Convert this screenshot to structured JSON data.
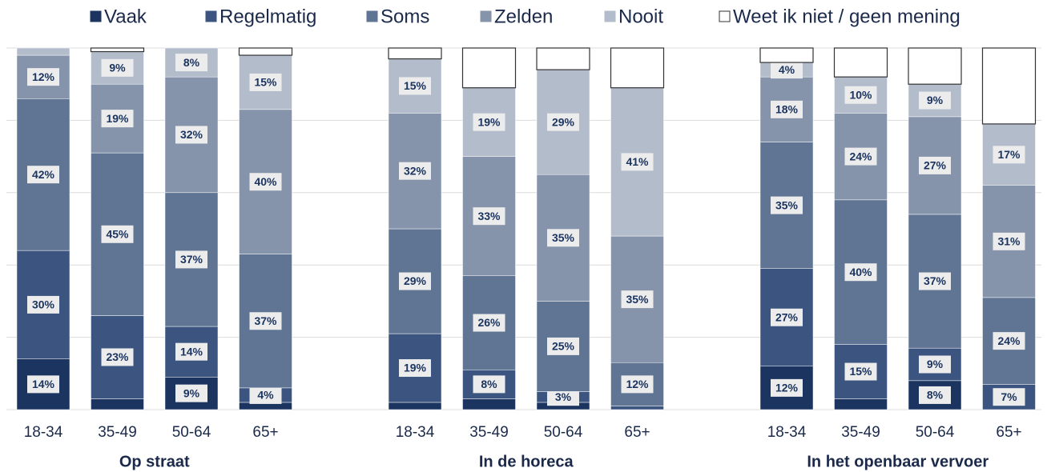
{
  "chart_data": {
    "type": "stacked_bar",
    "categories": [
      "18-34",
      "35-49",
      "50-64",
      "65+",
      "18-34",
      "35-49",
      "50-64",
      "65+",
      "18-34",
      "35-49",
      "50-64",
      "65+"
    ],
    "group_labels": [
      "Op straat",
      "In de horeca",
      "In het openbaar vervoer"
    ],
    "ylim": [
      0,
      100
    ],
    "yticks": [
      0,
      20,
      40,
      60,
      80,
      100
    ],
    "grid": true,
    "legend": "top",
    "series": [
      {
        "name": "Vaak",
        "color": "#1b3460",
        "values": [
          14,
          3,
          9,
          2,
          2,
          3,
          2,
          0,
          12,
          3,
          8,
          0
        ],
        "value_labels": [
          "14%",
          null,
          "9%",
          null,
          null,
          null,
          null,
          null,
          "12%",
          null,
          "8%",
          null
        ]
      },
      {
        "name": "Regelmatig",
        "color": "#3b5580",
        "values": [
          30,
          23,
          14,
          4,
          19,
          8,
          3,
          1,
          27,
          15,
          9,
          7
        ],
        "value_labels": [
          "30%",
          "23%",
          "14%",
          "4%",
          "19%",
          "8%",
          "3%",
          null,
          "27%",
          "15%",
          "9%",
          "7%"
        ]
      },
      {
        "name": "Soms",
        "color": "#5f7593",
        "values": [
          42,
          45,
          37,
          37,
          29,
          26,
          25,
          12,
          35,
          40,
          37,
          24
        ],
        "value_labels": [
          "42%",
          "45%",
          "37%",
          "37%",
          "29%",
          "26%",
          "25%",
          "12%",
          "35%",
          "40%",
          "37%",
          "24%"
        ]
      },
      {
        "name": "Zelden",
        "color": "#8593ab",
        "values": [
          12,
          19,
          32,
          40,
          32,
          33,
          35,
          35,
          18,
          24,
          27,
          31
        ],
        "value_labels": [
          "12%",
          "19%",
          "32%",
          "40%",
          "32%",
          "33%",
          "35%",
          "35%",
          "18%",
          "24%",
          "27%",
          "31%"
        ]
      },
      {
        "name": "Nooit",
        "color": "#b3bccb",
        "values": [
          2,
          9,
          8,
          15,
          15,
          19,
          29,
          41,
          4,
          10,
          9,
          17
        ],
        "value_labels": [
          null,
          "9%",
          "8%",
          "15%",
          "15%",
          "19%",
          "29%",
          "41%",
          "4%",
          "10%",
          "9%",
          "17%"
        ]
      },
      {
        "name": "Weet ik niet / geen mening",
        "color": "#ffffff",
        "values": [
          0,
          1,
          0,
          2,
          3,
          11,
          6,
          11,
          4,
          8,
          10,
          21
        ],
        "value_labels": [
          null,
          null,
          null,
          null,
          null,
          null,
          null,
          null,
          null,
          null,
          null,
          null
        ]
      }
    ]
  }
}
